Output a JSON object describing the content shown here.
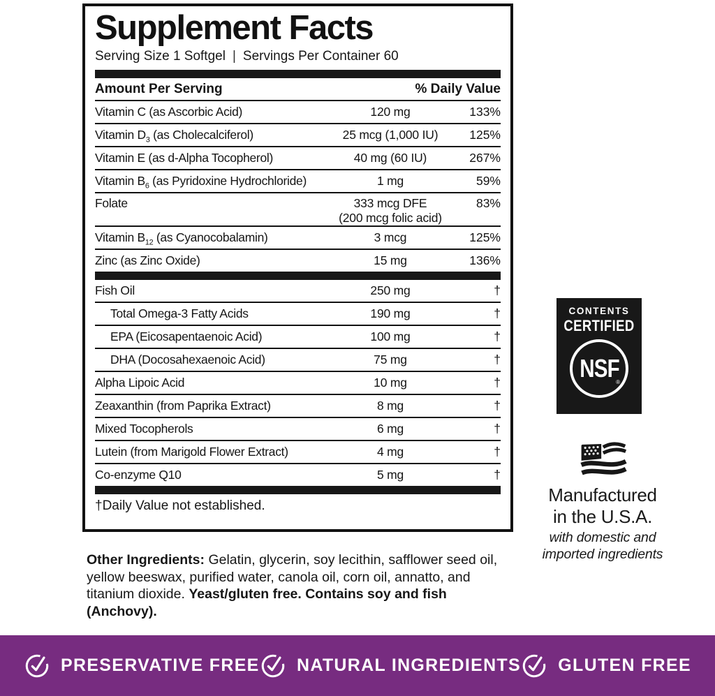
{
  "panel": {
    "title": "Supplement Facts",
    "serving_line": {
      "size": "Serving Size 1 Softgel",
      "divider": "|",
      "count": "Servings Per Container 60"
    },
    "header": {
      "amount": "Amount Per Serving",
      "dv": "% Daily Value"
    },
    "sections": [
      {
        "rows": [
          {
            "pre": "Vitamin C (as Ascorbic Acid)",
            "amount": "120 mg",
            "dv": "133%"
          },
          {
            "pre": "Vitamin D",
            "sub": "3",
            "post": " (as Cholecalciferol)",
            "amount": "25 mcg (1,000 IU)",
            "dv": "125%"
          },
          {
            "pre": "Vitamin E (as d-Alpha Tocopherol)",
            "amount": "40 mg (60 IU)",
            "dv": "267%"
          },
          {
            "pre": "Vitamin B",
            "sub": "6",
            "post": " (as Pyridoxine Hydrochloride)",
            "amount": "1 mg",
            "dv": "59%"
          },
          {
            "pre": "Folate",
            "amount": "333 mcg DFE",
            "amount2": "(200 mcg folic acid)",
            "dv": "83%"
          },
          {
            "pre": "Vitamin B",
            "sub": "12",
            "post": " (as Cyanocobalamin)",
            "amount": "3 mcg",
            "dv": "125%"
          },
          {
            "pre": "Zinc (as Zinc Oxide)",
            "amount": "15 mg",
            "dv": "136%"
          }
        ]
      },
      {
        "rows": [
          {
            "pre": "Fish Oil",
            "amount": "250 mg",
            "dv": "†"
          },
          {
            "pre": "Total Omega-3 Fatty Acids",
            "amount": "190 mg",
            "dv": "†",
            "indent": true
          },
          {
            "pre": "EPA (Eicosapentaenoic Acid)",
            "amount": "100 mg",
            "dv": "†",
            "indent": true
          },
          {
            "pre": "DHA (Docosahexaenoic Acid)",
            "amount": "75 mg",
            "dv": "†",
            "indent": true
          },
          {
            "pre": "Alpha Lipoic Acid",
            "amount": "10 mg",
            "dv": "†"
          },
          {
            "pre": "Zeaxanthin (from Paprika Extract)",
            "amount": "8 mg",
            "dv": "†"
          },
          {
            "pre": "Mixed Tocopherols",
            "amount": "6 mg",
            "dv": "†"
          },
          {
            "pre": "Lutein (from Marigold Flower Extract)",
            "amount": "4 mg",
            "dv": "†"
          },
          {
            "pre": "Co-enzyme Q10",
            "amount": "5 mg",
            "dv": "†"
          }
        ]
      }
    ],
    "footnote": "†Daily Value not established."
  },
  "other_ingredients": {
    "label": "Other Ingredients:",
    "text": " Gelatin, glycerin, soy lecithin, safflower seed oil, yellow beeswax, purified water, canola oil, corn oil, annatto, and titanium dioxide. ",
    "bold_tail": "Yeast/gluten free. Contains soy and fish (Anchovy)."
  },
  "nsf_badge": {
    "line1": "CONTENTS",
    "line2": "CERTIFIED",
    "logo": "NSF",
    "reg": "®",
    "bg_color": "#181818"
  },
  "made_in_usa": {
    "flag_icon": "us-flag-icon",
    "line1": "Manufactured",
    "line2": "in the U.S.A.",
    "line3": "with domestic and",
    "line4": "imported ingredients"
  },
  "banner": {
    "bg_color": "#772c80",
    "text_color": "#ffffff",
    "items": [
      {
        "icon": "check-circle-icon",
        "label": "PRESERVATIVE FREE"
      },
      {
        "icon": "check-circle-icon",
        "label": "NATURAL INGREDIENTS"
      },
      {
        "icon": "check-circle-icon",
        "label": "GLUTEN FREE"
      }
    ]
  }
}
